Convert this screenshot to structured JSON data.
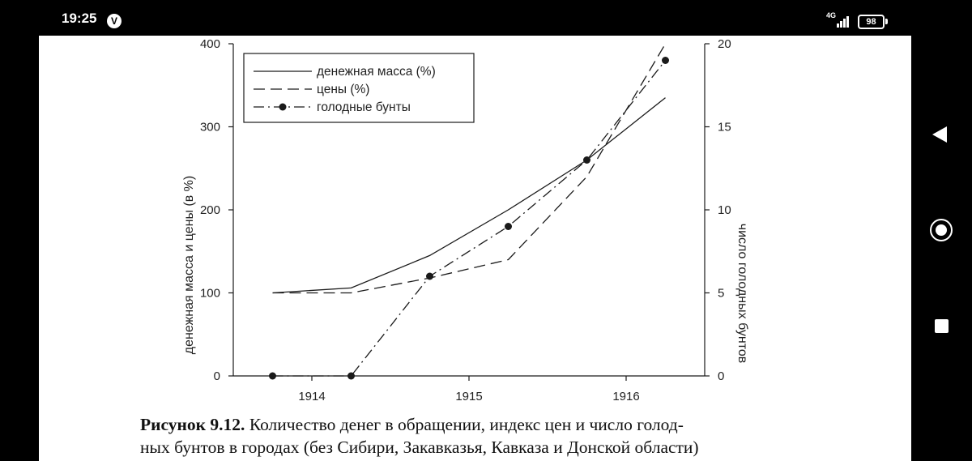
{
  "status_bar": {
    "time": "19:25",
    "notification_icon": "circled-v-icon",
    "notification_letter": "V",
    "network_label": "4G",
    "signal_icon": "signal-bars-icon",
    "battery_icon": "battery-icon",
    "battery_level": "98"
  },
  "nav_bar": {
    "back_icon": "triangle-back-icon",
    "home_icon": "circle-home-icon",
    "recents_icon": "square-recents-icon"
  },
  "chart_data": {
    "type": "line",
    "x": [
      1913.75,
      1914.25,
      1914.75,
      1915.25,
      1915.75,
      1916.25
    ],
    "xlim": [
      1913.5,
      1916.5
    ],
    "x_ticks": [
      1914,
      1915,
      1916
    ],
    "ylabel": "денежная масса и цены (в %)",
    "ylim": [
      0,
      400
    ],
    "y_ticks": [
      0,
      100,
      200,
      300,
      400
    ],
    "y2label": "число голодных бунтов",
    "y2lim": [
      0,
      20
    ],
    "y2_ticks": [
      0,
      5,
      10,
      15,
      20
    ],
    "grid": false,
    "legend_position": "top-left",
    "line_color": "#1a1a1a",
    "series": [
      {
        "name": "денежная масса (%)",
        "axis": "left",
        "style": "solid",
        "markers": false,
        "values": [
          100,
          106,
          145,
          200,
          260,
          335
        ]
      },
      {
        "name": "цены (%)",
        "axis": "left",
        "style": "dashed",
        "markers": false,
        "values": [
          100,
          100,
          118,
          140,
          240,
          400
        ]
      },
      {
        "name": "голодные бунты",
        "axis": "right",
        "style": "dash-dot",
        "markers": true,
        "values": [
          0,
          0,
          6,
          9,
          13,
          19
        ]
      }
    ]
  },
  "caption": {
    "label": "Рисунок 9.12.",
    "line1": "Количество денег в обращении, индекс цен и число голод-",
    "line2": "ных бунтов в городах (без Сибири, Закавказья, Кавказа и Донской области)"
  }
}
